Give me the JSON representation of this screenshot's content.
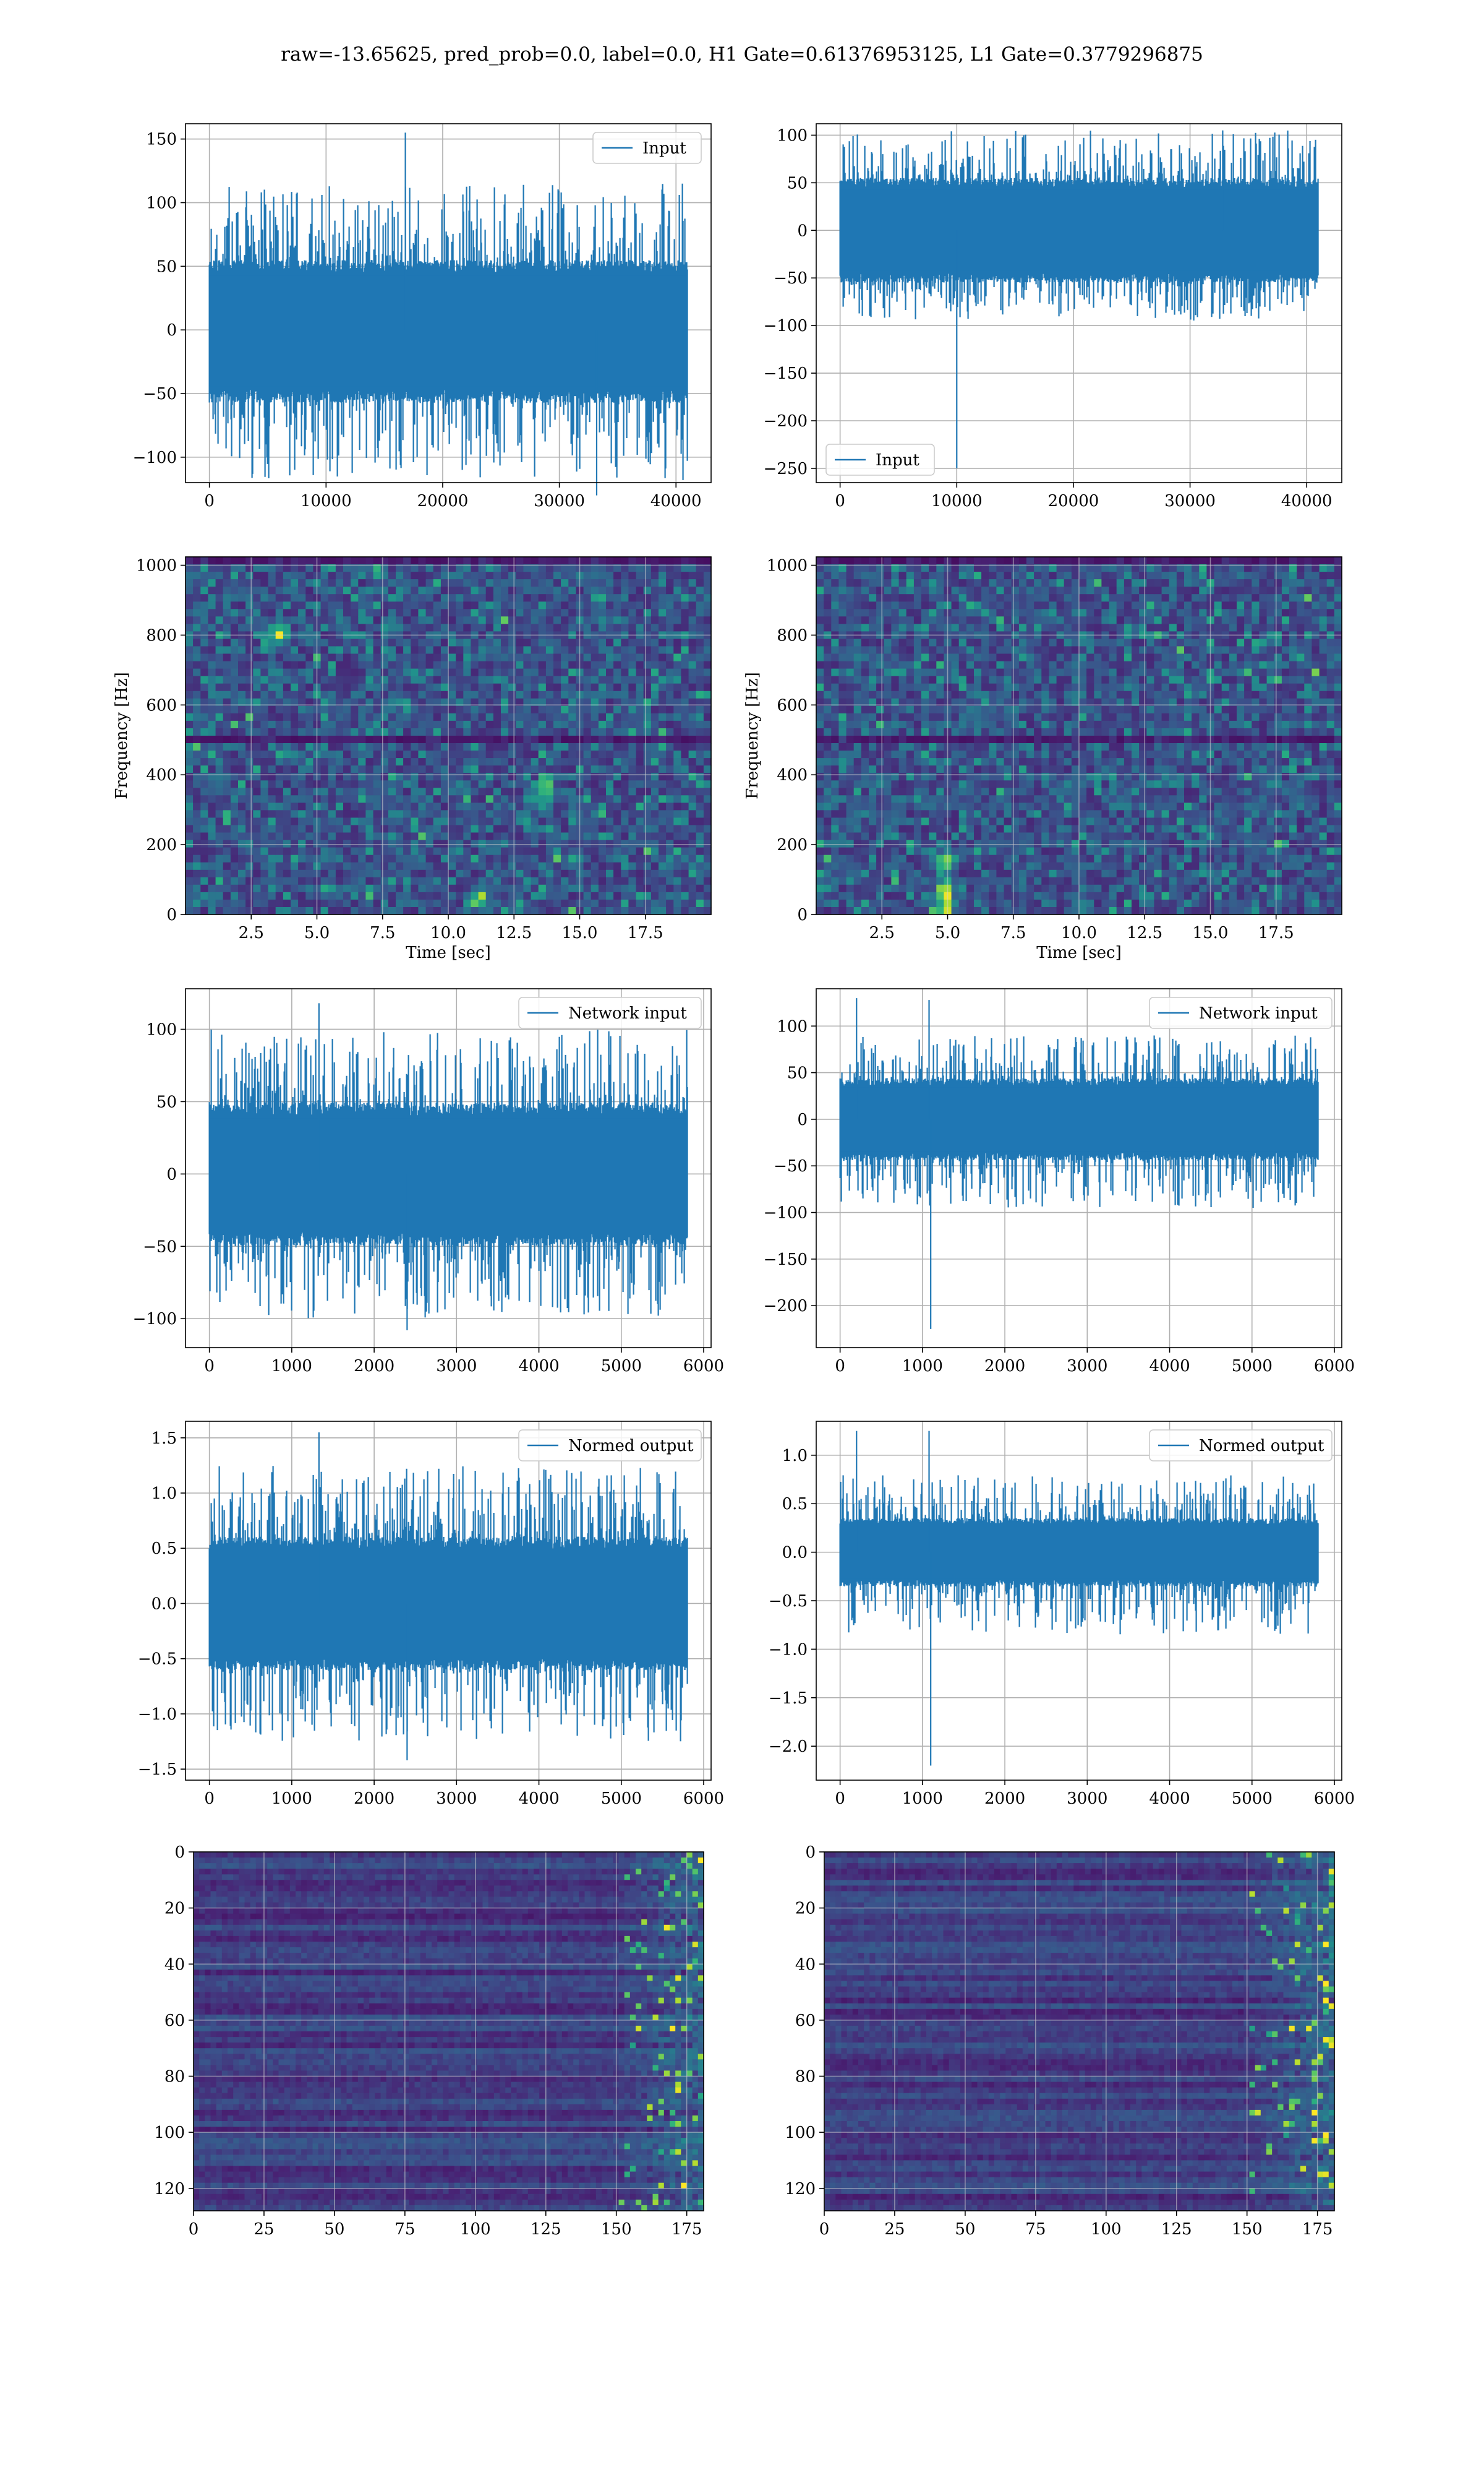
{
  "figure": {
    "title": "raw=-13.65625, pred_prob=0.0, label=0.0, H1 Gate=0.61376953125, L1 Gate=0.3779296875"
  },
  "colors": {
    "line": "#1f77b4",
    "grid": "#b0b0b0",
    "viridis_low": "#440154",
    "viridis_high": "#fde725"
  },
  "chart_data": [
    {
      "id": "h1-input",
      "type": "line",
      "title": "",
      "xlabel": "",
      "ylabel": "",
      "legend": {
        "label": "Input",
        "placement": "top-right"
      },
      "xlim": [
        -2048,
        43008
      ],
      "ylim": [
        -120,
        162
      ],
      "xticks": [
        0,
        10000,
        20000,
        30000,
        40000
      ],
      "xtick_labels": [
        "0",
        "10000",
        "20000",
        "30000",
        "40000"
      ],
      "yticks": [
        -100,
        -50,
        0,
        50,
        100,
        150
      ],
      "ytick_labels": [
        "−100",
        "−50",
        "0",
        "50",
        "100",
        "150"
      ],
      "grid": true,
      "series": [
        {
          "n": 40960,
          "envelope": {
            "baseline": 0,
            "core_max": 50,
            "core_min": -52,
            "peak_max": 115,
            "peak_min": -118
          },
          "spikes": [
            {
              "x": 16800,
              "y": 155
            },
            {
              "x": 33200,
              "y": -130
            },
            {
              "x": 40600,
              "y": -118
            }
          ]
        }
      ]
    },
    {
      "id": "l1-input",
      "type": "line",
      "title": "",
      "xlabel": "",
      "ylabel": "",
      "legend": {
        "label": "Input",
        "placement": "bottom-left"
      },
      "xlim": [
        -2048,
        43008
      ],
      "ylim": [
        -265,
        112
      ],
      "xticks": [
        0,
        10000,
        20000,
        30000,
        40000
      ],
      "xtick_labels": [
        "0",
        "10000",
        "20000",
        "30000",
        "40000"
      ],
      "yticks": [
        -250,
        -200,
        -150,
        -100,
        -50,
        0,
        50,
        100
      ],
      "ytick_labels": [
        "−250",
        "−200",
        "−150",
        "−100",
        "−50",
        "0",
        "50",
        "100"
      ],
      "grid": true,
      "series": [
        {
          "n": 40960,
          "envelope": {
            "baseline": 0,
            "core_max": 50,
            "core_min": -50,
            "peak_max": 105,
            "peak_min": -95
          },
          "spikes": [
            {
              "x": 10000,
              "y": -250
            },
            {
              "x": 32800,
              "y": 105
            }
          ]
        }
      ]
    },
    {
      "id": "h1-spectrogram",
      "type": "heatmap",
      "title": "",
      "xlabel": "Time [sec]",
      "ylabel": "Frequency [Hz]",
      "xlim": [
        0,
        20
      ],
      "ylim": [
        0,
        1024
      ],
      "xticks": [
        2.5,
        5.0,
        7.5,
        10.0,
        12.5,
        15.0,
        17.5
      ],
      "xtick_labels": [
        "2.5",
        "5.0",
        "7.5",
        "10.0",
        "12.5",
        "15.0",
        "17.5"
      ],
      "yticks": [
        0,
        200,
        400,
        600,
        800,
        1000
      ],
      "ytick_labels": [
        "0",
        "200",
        "400",
        "600",
        "800",
        "1000"
      ],
      "grid": true,
      "colormap": "viridis",
      "dark_bands_hz": [
        495,
        1010
      ],
      "hot_spots": [
        {
          "t": 11.2,
          "f": 45
        },
        {
          "t": 13.7,
          "f": 350
        },
        {
          "t": 3.5,
          "f": 800
        }
      ]
    },
    {
      "id": "l1-spectrogram",
      "type": "heatmap",
      "title": "",
      "xlabel": "Time [sec]",
      "ylabel": "Frequency [Hz]",
      "xlim": [
        0,
        20
      ],
      "ylim": [
        0,
        1024
      ],
      "xticks": [
        2.5,
        5.0,
        7.5,
        10.0,
        12.5,
        15.0,
        17.5
      ],
      "xtick_labels": [
        "2.5",
        "5.0",
        "7.5",
        "10.0",
        "12.5",
        "15.0",
        "17.5"
      ],
      "yticks": [
        0,
        200,
        400,
        600,
        800,
        1000
      ],
      "ytick_labels": [
        "0",
        "200",
        "400",
        "600",
        "800",
        "1000"
      ],
      "grid": true,
      "colormap": "viridis",
      "dark_bands_hz": [
        495,
        1010
      ],
      "hot_spots": [
        {
          "t": 4.9,
          "f": 20
        },
        {
          "t": 4.9,
          "f": 70
        },
        {
          "t": 4.9,
          "f": 150
        }
      ]
    },
    {
      "id": "h1-network-input",
      "type": "line",
      "title": "",
      "xlabel": "",
      "ylabel": "",
      "legend": {
        "label": "Network input",
        "placement": "top-right"
      },
      "xlim": [
        -290,
        6090
      ],
      "ylim": [
        -120,
        128
      ],
      "xticks": [
        0,
        1000,
        2000,
        3000,
        4000,
        5000,
        6000
      ],
      "xtick_labels": [
        "0",
        "1000",
        "2000",
        "3000",
        "4000",
        "5000",
        "6000"
      ],
      "yticks": [
        -100,
        -50,
        0,
        50,
        100
      ],
      "ytick_labels": [
        "−100",
        "−50",
        "0",
        "50",
        "100"
      ],
      "grid": true,
      "series": [
        {
          "n": 5800,
          "envelope": {
            "baseline": 0,
            "core_max": 45,
            "core_min": -45,
            "peak_max": 100,
            "peak_min": -100
          },
          "spikes": [
            {
              "x": 1330,
              "y": 118
            },
            {
              "x": 2400,
              "y": -108
            }
          ]
        }
      ]
    },
    {
      "id": "l1-network-input",
      "type": "line",
      "title": "",
      "xlabel": "",
      "ylabel": "",
      "legend": {
        "label": "Network input",
        "placement": "top-right"
      },
      "xlim": [
        -290,
        6090
      ],
      "ylim": [
        -245,
        140
      ],
      "xticks": [
        0,
        1000,
        2000,
        3000,
        4000,
        5000,
        6000
      ],
      "xtick_labels": [
        "0",
        "1000",
        "2000",
        "3000",
        "4000",
        "5000",
        "6000"
      ],
      "yticks": [
        -200,
        -150,
        -100,
        -50,
        0,
        50,
        100
      ],
      "ytick_labels": [
        "−200",
        "−150",
        "−100",
        "−50",
        "0",
        "50",
        "100"
      ],
      "grid": true,
      "series": [
        {
          "n": 5800,
          "envelope": {
            "baseline": 0,
            "core_max": 40,
            "core_min": -40,
            "peak_max": 90,
            "peak_min": -95
          },
          "spikes": [
            {
              "x": 1100,
              "y": -225
            },
            {
              "x": 200,
              "y": 130
            },
            {
              "x": 1080,
              "y": 128
            }
          ]
        }
      ]
    },
    {
      "id": "h1-normed-output",
      "type": "line",
      "title": "",
      "xlabel": "",
      "ylabel": "",
      "legend": {
        "label": "Normed output",
        "placement": "top-right"
      },
      "xlim": [
        -290,
        6090
      ],
      "ylim": [
        -1.6,
        1.65
      ],
      "xticks": [
        0,
        1000,
        2000,
        3000,
        4000,
        5000,
        6000
      ],
      "xtick_labels": [
        "0",
        "1000",
        "2000",
        "3000",
        "4000",
        "5000",
        "6000"
      ],
      "yticks": [
        -1.5,
        -1.0,
        -0.5,
        0.0,
        0.5,
        1.0,
        1.5
      ],
      "ytick_labels": [
        "−1.5",
        "−1.0",
        "−0.5",
        "0.0",
        "0.5",
        "1.0",
        "1.5"
      ],
      "grid": true,
      "series": [
        {
          "n": 5800,
          "envelope": {
            "baseline": 0,
            "core_max": 0.55,
            "core_min": -0.55,
            "peak_max": 1.25,
            "peak_min": -1.25
          },
          "spikes": [
            {
              "x": 1330,
              "y": 1.55
            },
            {
              "x": 2400,
              "y": -1.42
            }
          ]
        }
      ]
    },
    {
      "id": "l1-normed-output",
      "type": "line",
      "title": "",
      "xlabel": "",
      "ylabel": "",
      "legend": {
        "label": "Normed output",
        "placement": "top-right"
      },
      "xlim": [
        -290,
        6090
      ],
      "ylim": [
        -2.35,
        1.35
      ],
      "xticks": [
        0,
        1000,
        2000,
        3000,
        4000,
        5000,
        6000
      ],
      "xtick_labels": [
        "0",
        "1000",
        "2000",
        "3000",
        "4000",
        "5000",
        "6000"
      ],
      "yticks": [
        -2.0,
        -1.5,
        -1.0,
        -0.5,
        0.0,
        0.5,
        1.0
      ],
      "ytick_labels": [
        "−2.0",
        "−1.5",
        "−1.0",
        "−0.5",
        "0.0",
        "0.5",
        "1.0"
      ],
      "grid": true,
      "series": [
        {
          "n": 5800,
          "envelope": {
            "baseline": 0,
            "core_max": 0.32,
            "core_min": -0.32,
            "peak_max": 0.8,
            "peak_min": -0.85
          },
          "spikes": [
            {
              "x": 1100,
              "y": -2.2
            },
            {
              "x": 200,
              "y": 1.25
            },
            {
              "x": 1080,
              "y": 1.25
            }
          ]
        }
      ]
    },
    {
      "id": "h1-feature-map",
      "type": "heatmap",
      "title": "",
      "xlabel": "",
      "ylabel": "",
      "xlim": [
        0,
        181
      ],
      "ylim": [
        128,
        0
      ],
      "xticks": [
        0,
        25,
        50,
        75,
        100,
        125,
        150,
        175
      ],
      "xtick_labels": [
        "0",
        "25",
        "50",
        "75",
        "100",
        "125",
        "150",
        "175"
      ],
      "yticks": [
        0,
        20,
        40,
        60,
        80,
        100,
        120
      ],
      "ytick_labels": [
        "0",
        "20",
        "40",
        "60",
        "80",
        "100",
        "120"
      ],
      "grid": true,
      "colormap": "viridis",
      "bright_region_cols": [
        150,
        181
      ]
    },
    {
      "id": "l1-feature-map",
      "type": "heatmap",
      "title": "",
      "xlabel": "",
      "ylabel": "",
      "xlim": [
        0,
        181
      ],
      "ylim": [
        128,
        0
      ],
      "xticks": [
        0,
        25,
        50,
        75,
        100,
        125,
        150,
        175
      ],
      "xtick_labels": [
        "0",
        "25",
        "50",
        "75",
        "100",
        "125",
        "150",
        "175"
      ],
      "yticks": [
        0,
        20,
        40,
        60,
        80,
        100,
        120
      ],
      "ytick_labels": [
        "0",
        "20",
        "40",
        "60",
        "80",
        "100",
        "120"
      ],
      "grid": true,
      "colormap": "viridis",
      "bright_region_cols": [
        150,
        181
      ]
    }
  ]
}
